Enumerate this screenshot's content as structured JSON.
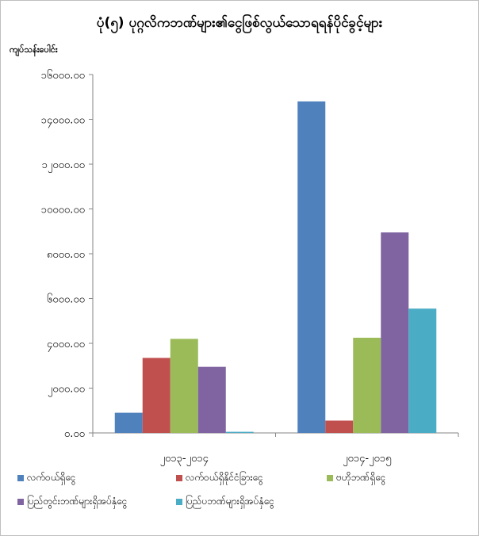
{
  "chart_data": {
    "type": "bar",
    "title": "ပုံ(၅) ပုဂ္ဂလိကဘဏ်များ၏ငွေဖြစ်လွယ်သောရရန်ပိုင်ခွင့်များ",
    "ylabel": "ကျပ်သန်းပေါင်း",
    "xlabel": "",
    "ylim": [
      0,
      16000
    ],
    "yticks": [
      0,
      2000,
      4000,
      6000,
      8000,
      10000,
      12000,
      14000,
      16000
    ],
    "ytick_labels": [
      "၀.၀၀",
      "၂၀၀၀.၀၀",
      "၄၀၀၀.၀၀",
      "၆၀၀၀.၀၀",
      "၈၀၀၀.၀၀",
      "၁၀၀၀၀.၀၀",
      "၁၂၀၀၀.၀၀",
      "၁၄၀၀၀.၀၀",
      "၁၆၀၀၀.၀၀"
    ],
    "categories": [
      "၂၀၁၃-၂၀၁၄",
      "၂၀၁၄-၂၀၁၅"
    ],
    "series": [
      {
        "name": "လက်ဝယ်ရှိငွေ",
        "color": "#4f81bd",
        "values": [
          900,
          14800
        ]
      },
      {
        "name": "လက်ဝယ်ရှိနိုင်ငံခြားငွေ",
        "color": "#c0504d",
        "values": [
          3350,
          550
        ]
      },
      {
        "name": "ဗဟိုဘဏ်ရှိငွေ",
        "color": "#9bbb59",
        "values": [
          4200,
          4250
        ]
      },
      {
        "name": "ပြည်တွင်းဘဏ်များရှိအပ်နှံငွေ",
        "color": "#8064a2",
        "values": [
          2950,
          8950
        ]
      },
      {
        "name": "ပြည်ပဘဏ်များရှိအပ်နှံငွေ",
        "color": "#4bacc6",
        "values": [
          50,
          5550
        ]
      }
    ],
    "legend_position": "bottom",
    "grid": false
  }
}
